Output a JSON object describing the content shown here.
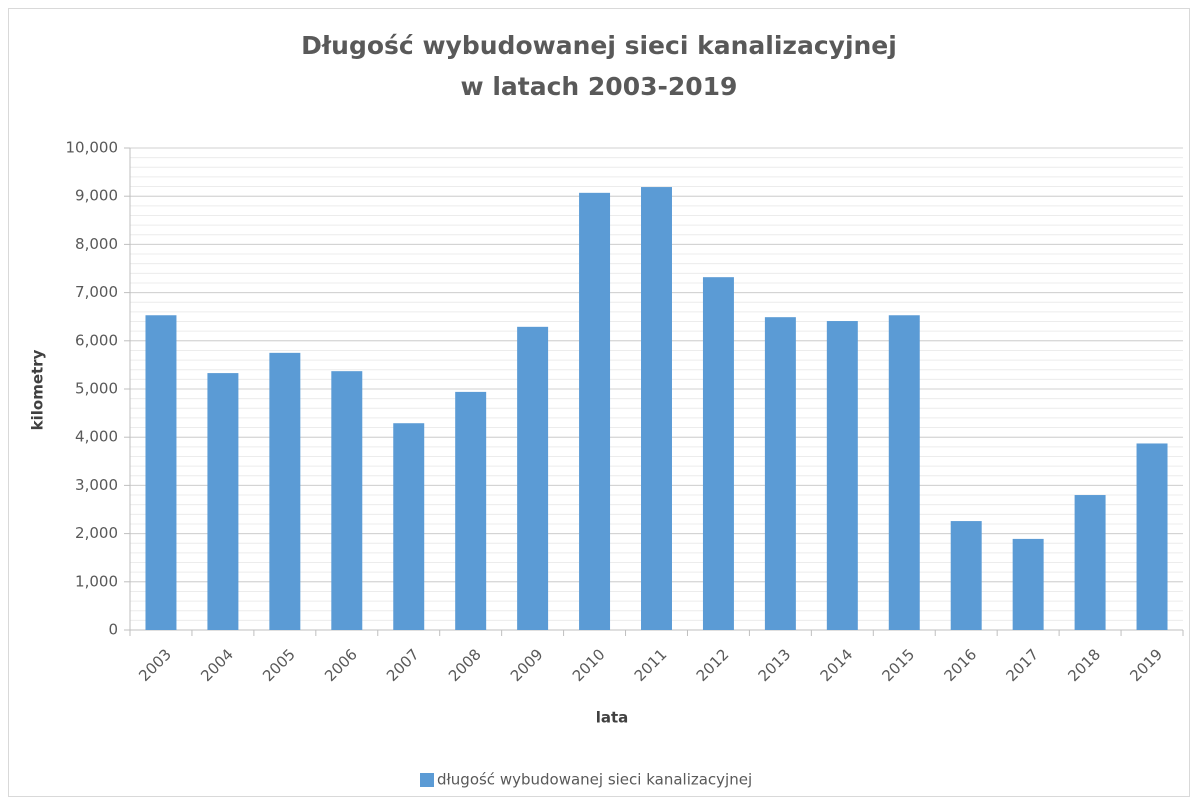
{
  "chart_data": {
    "type": "bar",
    "title": [
      "Długość wybudowanej sieci kanalizacyjnej",
      "w latach 2003-2019"
    ],
    "x_label": "lata",
    "y_label": "kilometry",
    "categories": [
      "2003",
      "2004",
      "2005",
      "2006",
      "2007",
      "2008",
      "2009",
      "2010",
      "2011",
      "2012",
      "2013",
      "2014",
      "2015",
      "2016",
      "2017",
      "2018",
      "2019"
    ],
    "series": [
      {
        "name": "długość wybudowanej sieci kanalizacyjnej",
        "color": "#5b9bd5",
        "values": [
          6530,
          5330,
          5750,
          5370,
          4290,
          4940,
          6290,
          9070,
          9190,
          7320,
          6490,
          6410,
          6530,
          2260,
          1890,
          2800,
          3870
        ]
      }
    ],
    "ylim": [
      0,
      10000
    ],
    "yticks": [
      0,
      {
        "value": 1000,
        "label": "1,000"
      },
      {
        "value": 2000,
        "label": "2,000"
      },
      {
        "value": 3000,
        "label": "3,000"
      },
      {
        "value": 4000,
        "label": "4,000"
      },
      {
        "value": 5000,
        "label": "5,000"
      },
      {
        "value": 6000,
        "label": "6,000"
      },
      {
        "value": 7000,
        "label": "7,000"
      },
      {
        "value": 8000,
        "label": "8,000"
      },
      {
        "value": 9000,
        "label": "9,000"
      },
      {
        "value": 10000,
        "label": "10,000"
      }
    ],
    "grid": true,
    "minor_grid_step": 200,
    "legend": "bottom"
  }
}
